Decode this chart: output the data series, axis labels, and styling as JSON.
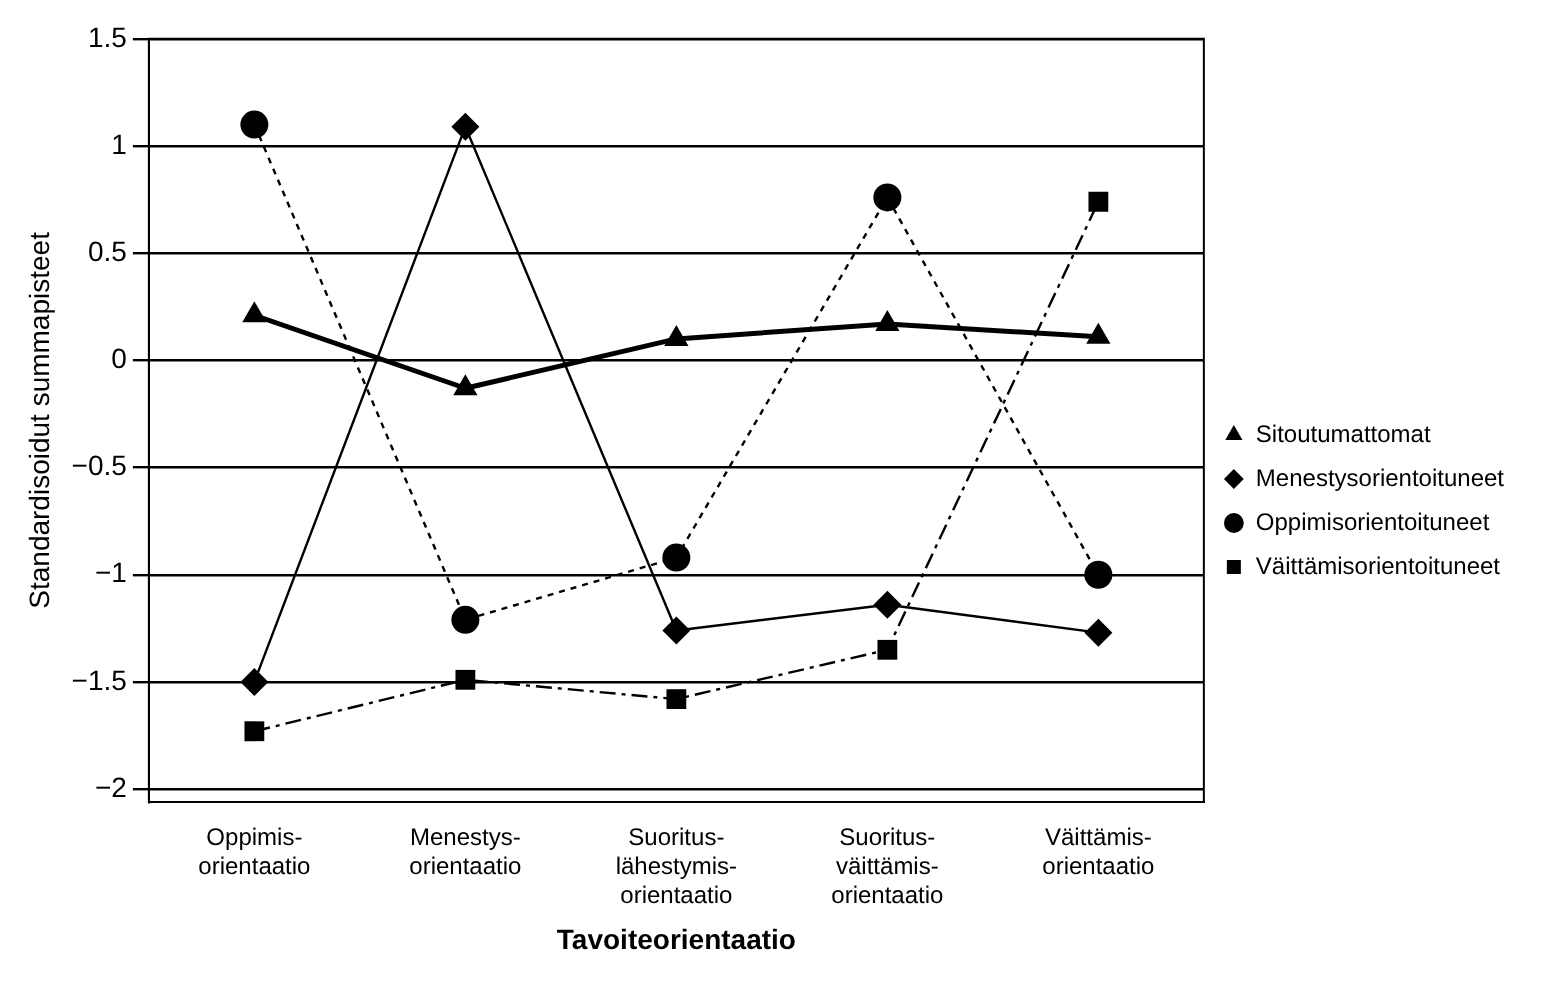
{
  "chart_data": {
    "type": "line",
    "xlabel": "Tavoiteorientaatio",
    "ylabel": "Standardisoidut summapisteet",
    "categories": [
      "Oppimis-\norientaatio",
      "Menestys-\norientaatio",
      "Suoritus-\nlähestymis-\norientaatio",
      "Suoritus-\nväittämis-\norientaatio",
      "Väittämis-\norientaatio"
    ],
    "series": [
      {
        "name": "Sitoutumattomat",
        "color": "#000000",
        "marker": "triangle",
        "line_style": "solid",
        "values": [
          0.21,
          -0.13,
          0.1,
          0.17,
          0.11
        ]
      },
      {
        "name": "Menestysorientoituneet",
        "color": "#000000",
        "marker": "diamond",
        "line_style": "solid",
        "values": [
          -1.5,
          1.09,
          -1.26,
          -1.14,
          -1.27
        ]
      },
      {
        "name": "Oppimisorientoituneet",
        "color": "#000000",
        "marker": "circle",
        "line_style": "dotted",
        "values": [
          1.1,
          -1.21,
          -0.92,
          0.76,
          -1.0
        ]
      },
      {
        "name": "Väittämisorientoituneet",
        "color": "#000000",
        "marker": "square",
        "line_style": "dashed",
        "values": [
          -1.73,
          -1.49,
          -1.58,
          -1.35,
          0.74
        ]
      }
    ],
    "ylim": [
      -2.06,
      1.5
    ],
    "yticks": [
      {
        "value": -2,
        "label": "−2"
      },
      {
        "value": -1.5,
        "label": "−1.5"
      },
      {
        "value": -1,
        "label": "−1"
      },
      {
        "value": -0.5,
        "label": "−0.5"
      },
      0,
      0.5,
      1,
      1.5
    ],
    "grid": "y",
    "legend": "right"
  }
}
